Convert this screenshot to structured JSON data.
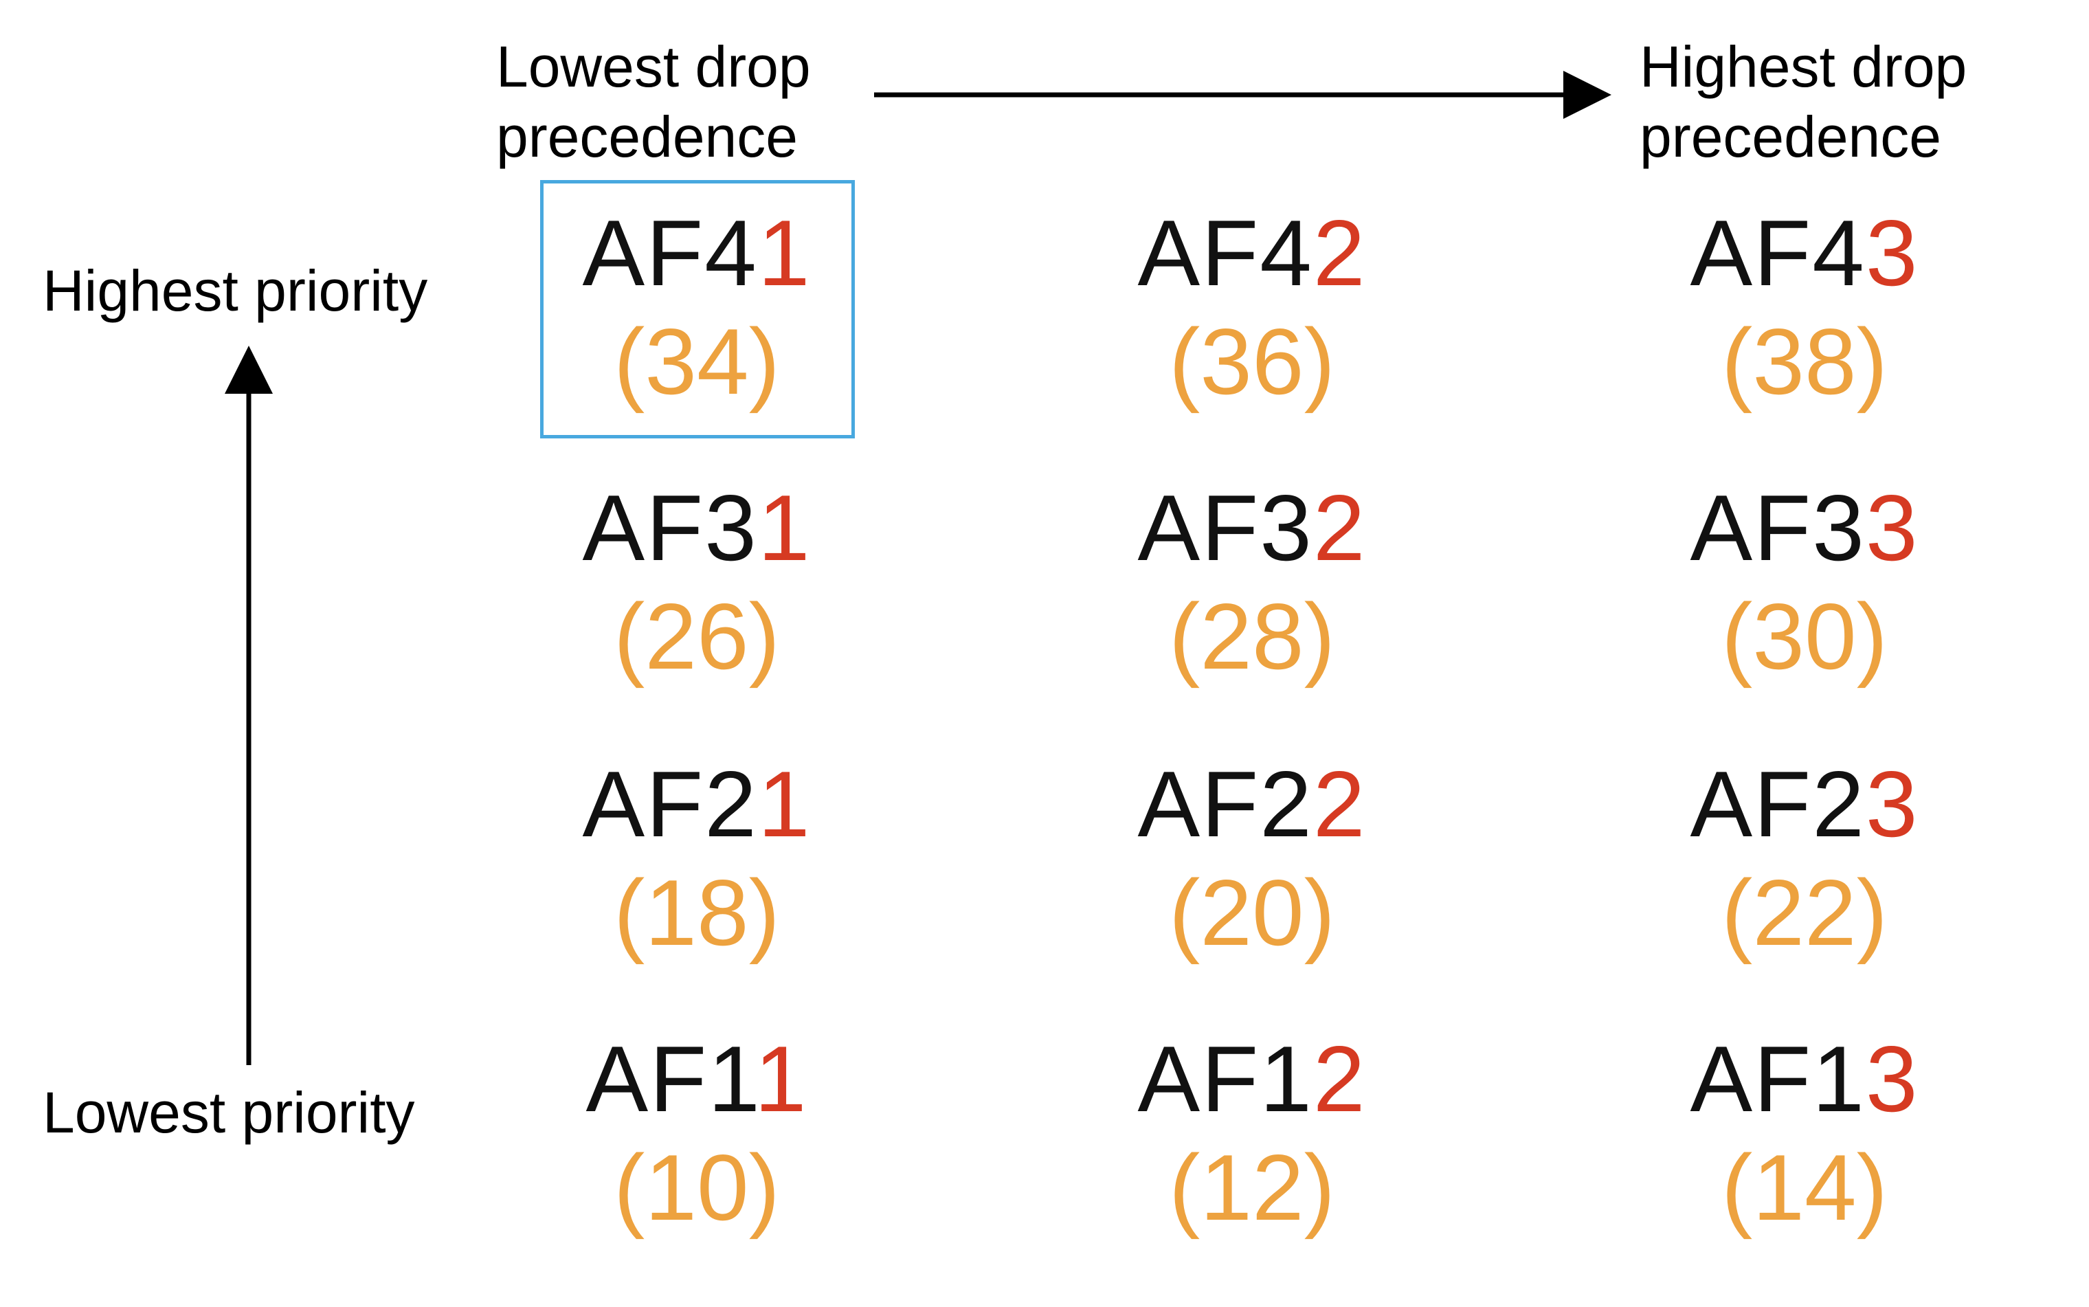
{
  "labels": {
    "drop_low": {
      "line1": "Lowest drop",
      "line2": "precedence"
    },
    "drop_high": {
      "line1": "Highest drop",
      "line2": "precedence"
    },
    "priority_high": "Highest priority",
    "priority_low": "Lowest priority"
  },
  "colors": {
    "class_text": "#111111",
    "drop_digit": "#d63a22",
    "dscp_value": "#eda23f",
    "highlight": "#48a8df"
  },
  "highlighted_cell": "AF41",
  "rows": [
    {
      "cells": [
        {
          "prefix": "AF4",
          "digit": "1",
          "dscp": "(34)"
        },
        {
          "prefix": "AF4",
          "digit": "2",
          "dscp": "(36)"
        },
        {
          "prefix": "AF4",
          "digit": "3",
          "dscp": "(38)"
        }
      ]
    },
    {
      "cells": [
        {
          "prefix": "AF3",
          "digit": "1",
          "dscp": "(26)"
        },
        {
          "prefix": "AF3",
          "digit": "2",
          "dscp": "(28)"
        },
        {
          "prefix": "AF3",
          "digit": "3",
          "dscp": "(30)"
        }
      ]
    },
    {
      "cells": [
        {
          "prefix": "AF2",
          "digit": "1",
          "dscp": "(18)"
        },
        {
          "prefix": "AF2",
          "digit": "2",
          "dscp": "(20)"
        },
        {
          "prefix": "AF2",
          "digit": "3",
          "dscp": "(22)"
        }
      ]
    },
    {
      "cells": [
        {
          "prefix": "AF1",
          "digit": "1",
          "dscp": "(10)"
        },
        {
          "prefix": "AF1",
          "digit": "2",
          "dscp": "(12)"
        },
        {
          "prefix": "AF1",
          "digit": "3",
          "dscp": "(14)"
        }
      ]
    }
  ]
}
